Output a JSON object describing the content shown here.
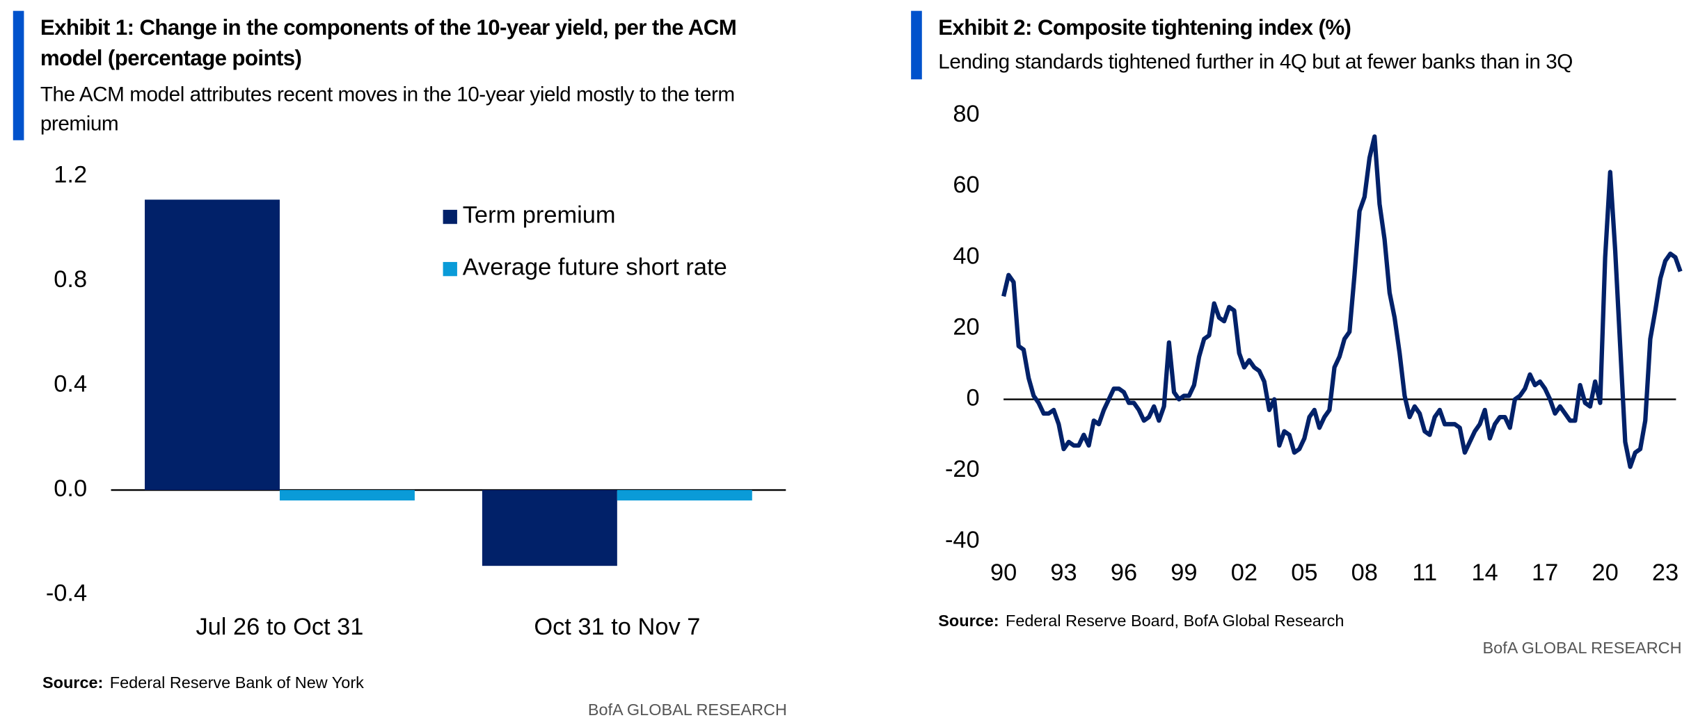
{
  "chart_data": [
    {
      "type": "bar",
      "title": "Exhibit 1: Change in the components of the 10-year yield, per the ACM model (percentage points)",
      "subtitle": "The ACM model attributes recent moves in the 10-year yield mostly to the term premium",
      "categories": [
        "Jul 26 to Oct 31",
        "Oct 31 to Nov 7"
      ],
      "series": [
        {
          "name": "Term premium",
          "color": "#012169",
          "values": [
            1.11,
            -0.29
          ]
        },
        {
          "name": "Average future short rate",
          "color": "#0a9bd8",
          "values": [
            -0.04,
            -0.04
          ]
        }
      ],
      "ylim": [
        -0.4,
        1.2
      ],
      "yticks": [
        1.2,
        0.8,
        0.4,
        {
          "value": 0,
          "label": "0.0"
        },
        -0.4
      ],
      "legend": "upper right",
      "source_label": "Source:",
      "source": "Federal Reserve Bank of New York",
      "brand": "BofA GLOBAL RESEARCH"
    },
    {
      "type": "line",
      "title": "Exhibit 2: Composite tightening index (%)",
      "subtitle": "Lending standards tightened further in 4Q but at fewer banks than in 3Q",
      "color": "#012169",
      "x": [
        1990,
        1990.25,
        1990.5,
        1990.75,
        1991,
        1991.25,
        1991.5,
        1991.75,
        1992,
        1992.25,
        1992.5,
        1992.75,
        1993,
        1993.25,
        1993.5,
        1993.75,
        1994,
        1994.25,
        1994.5,
        1994.75,
        1995,
        1995.25,
        1995.5,
        1995.75,
        1996,
        1996.25,
        1996.5,
        1996.75,
        1997,
        1997.25,
        1997.5,
        1997.75,
        1998,
        1998.25,
        1998.5,
        1998.75,
        1999,
        1999.25,
        1999.5,
        1999.75,
        2000,
        2000.25,
        2000.5,
        2000.75,
        2001,
        2001.25,
        2001.5,
        2001.75,
        2002,
        2002.25,
        2002.5,
        2002.75,
        2003,
        2003.25,
        2003.5,
        2003.75,
        2004,
        2004.25,
        2004.5,
        2004.75,
        2005,
        2005.25,
        2005.5,
        2005.75,
        2006,
        2006.25,
        2006.5,
        2006.75,
        2007,
        2007.25,
        2007.5,
        2007.75,
        2008,
        2008.25,
        2008.5,
        2008.75,
        2009,
        2009.25,
        2009.5,
        2009.75,
        2010,
        2010.25,
        2010.5,
        2010.75,
        2011,
        2011.25,
        2011.5,
        2011.75,
        2012,
        2012.25,
        2012.5,
        2012.75,
        2013,
        2013.25,
        2013.5,
        2013.75,
        2014,
        2014.25,
        2014.5,
        2014.75,
        2015,
        2015.25,
        2015.5,
        2015.75,
        2016,
        2016.25,
        2016.5,
        2016.75,
        2017,
        2017.25,
        2017.5,
        2017.75,
        2018,
        2018.25,
        2018.5,
        2018.75,
        2019,
        2019.25,
        2019.5,
        2019.75,
        2020,
        2020.25,
        2020.5,
        2020.75,
        2021,
        2021.25,
        2021.5,
        2021.75,
        2022,
        2022.25,
        2022.5,
        2022.75,
        2023,
        2023.25,
        2023.5,
        2023.75
      ],
      "values": [
        29,
        35,
        33,
        15,
        14,
        6,
        1,
        -1,
        -4,
        -4,
        -3,
        -7,
        -14,
        -12,
        -13,
        -13,
        -10,
        -13,
        -6,
        -7,
        -3,
        0,
        3,
        3,
        2,
        -1,
        -1,
        -3,
        -6,
        -5,
        -2,
        -6,
        -2,
        16,
        2,
        0,
        1,
        1,
        4,
        12,
        17,
        18,
        27,
        23,
        22,
        26,
        25,
        13,
        9,
        11,
        9,
        8,
        5,
        -3,
        0,
        -13,
        -9,
        -10,
        -15,
        -14,
        -11,
        -5,
        -3,
        -8,
        -5,
        -3,
        9,
        12,
        17,
        19,
        35,
        53,
        57,
        68,
        74,
        55,
        45,
        30,
        23,
        13,
        1,
        -5,
        -2,
        -4,
        -9,
        -10,
        -5,
        -3,
        -7,
        -7,
        -7,
        -8,
        -15,
        -12,
        -9,
        -7,
        -3,
        -11,
        -7,
        -5,
        -5,
        -8,
        0,
        1,
        3,
        7,
        4,
        5,
        3,
        0,
        -4,
        -2,
        -4,
        -6,
        -6,
        4,
        -1,
        -2,
        5,
        -1,
        40,
        64,
        42,
        15,
        -12,
        -19,
        -15,
        -14,
        -6,
        17,
        25,
        34,
        39,
        41,
        40,
        36
      ],
      "xlim": [
        1990,
        2023.75
      ],
      "xticks": [
        {
          "value": 1990,
          "label": "90"
        },
        {
          "value": 1993,
          "label": "93"
        },
        {
          "value": 1996,
          "label": "96"
        },
        {
          "value": 1999,
          "label": "99"
        },
        {
          "value": 2002,
          "label": "02"
        },
        {
          "value": 2005,
          "label": "05"
        },
        {
          "value": 2008,
          "label": "08"
        },
        {
          "value": 2011,
          "label": "11"
        },
        {
          "value": 2014,
          "label": "14"
        },
        {
          "value": 2017,
          "label": "17"
        },
        {
          "value": 2020,
          "label": "20"
        },
        {
          "value": 2023,
          "label": "23"
        }
      ],
      "ylim": [
        -40,
        80
      ],
      "yticks": [
        80,
        60,
        40,
        20,
        0,
        -20,
        -40
      ],
      "source_label": "Source:",
      "source": "Federal Reserve Board, BofA Global Research",
      "brand": "BofA GLOBAL RESEARCH"
    }
  ]
}
